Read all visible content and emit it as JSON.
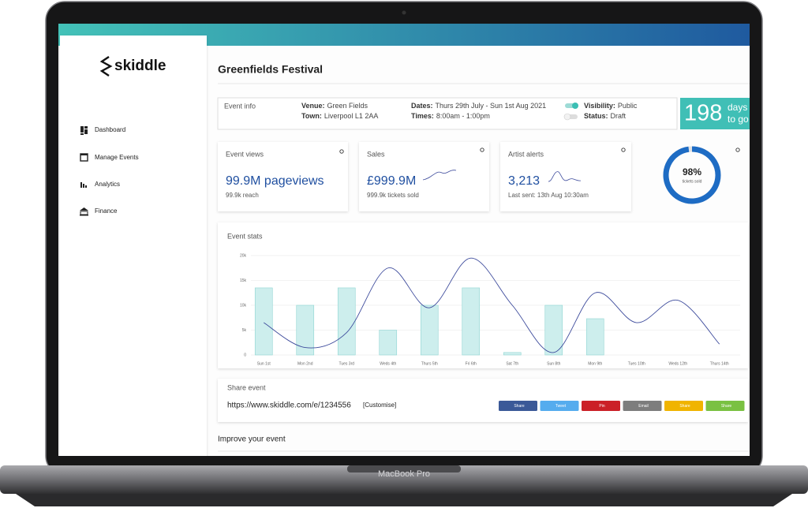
{
  "device": "MacBook Pro",
  "sidebar": {
    "logo": "skiddle",
    "nav": [
      "Dashboard",
      "Manage Events",
      "Analytics",
      "Finance"
    ]
  },
  "header": {
    "title": "Greenfields Festival"
  },
  "event_info": {
    "label": "Event info",
    "fields": [
      {
        "key": "Venue:",
        "value": "Green Fields"
      },
      {
        "key": "Town:",
        "value": "Liverpool L1 2AA"
      },
      {
        "key": "Dates:",
        "value": "Thurs 29th July - Sun 1st Aug 2021"
      },
      {
        "key": "Times:",
        "value": "8:00am - 1:00pm"
      },
      {
        "key": "Visibility:",
        "value": "Public"
      },
      {
        "key": "Status:",
        "value": "Draft"
      }
    ]
  },
  "countdown": {
    "value": 198,
    "unit": "days",
    "suffix": "to go"
  },
  "stats": [
    {
      "title": "Event views",
      "value": "99.9M pageviews",
      "sub": "99.9k reach"
    },
    {
      "title": "Sales",
      "value": "£999.9M",
      "sub": "999.9k tickets sold"
    },
    {
      "title": "Artist alerts",
      "value": "3,213",
      "sub": "Last sent: 13th Aug 10:30am"
    }
  ],
  "tickets_sold": {
    "value": 98,
    "label": "98%",
    "caption": "tickets sold"
  },
  "chart_data": {
    "type": "bar",
    "title": "Event stats",
    "categories": [
      "Sun 1st",
      "Mon 2nd",
      "Tues 3rd",
      "Weds 4th",
      "Thurs 5th",
      "Fri 6th",
      "Sat 7th",
      "Sun 8th",
      "Mon 9th",
      "Tues 10th",
      "Weds 12th",
      "Thurs 14th"
    ],
    "series": [
      {
        "type": "bar",
        "color": "#cdeeed",
        "values": [
          13500,
          10000,
          13500,
          5000,
          10000,
          13500,
          500,
          10000,
          7300,
          null,
          null,
          null
        ]
      },
      {
        "type": "line",
        "color": "#3d4b9c",
        "values": [
          6500,
          1500,
          4500,
          17500,
          9500,
          19500,
          10000,
          500,
          12500,
          6500,
          11000,
          2200
        ]
      }
    ],
    "ylim": [
      0,
      20000
    ],
    "yticks": [
      0,
      {
        "value": 5000,
        "label": "5k"
      },
      {
        "value": 10000,
        "label": "10k"
      },
      {
        "value": 15000,
        "label": "15k"
      },
      {
        "value": 20000,
        "label": "20k"
      }
    ],
    "grid": true
  },
  "share": {
    "title": "Share event",
    "url": "https://www.skiddle.com/e/1234556",
    "customise": "[Customise]",
    "buttons": [
      {
        "label": "Share",
        "color": "#3b5998"
      },
      {
        "label": "Tweet",
        "color": "#55acee"
      },
      {
        "label": "Pin",
        "color": "#cb2027"
      },
      {
        "label": "Email",
        "color": "#7d7d7d"
      },
      {
        "label": "Share",
        "color": "#f0b400"
      },
      {
        "label": "Share",
        "color": "#7ac142"
      }
    ]
  },
  "improve": {
    "title": "Improve your event"
  }
}
